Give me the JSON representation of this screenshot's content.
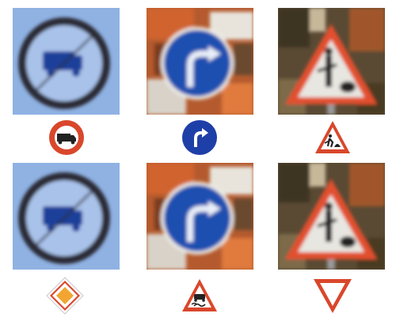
{
  "grid": {
    "rows": 2,
    "columns": 3,
    "photos": [
      {
        "row": 1,
        "col": 1,
        "subject": "no-trucks-sign",
        "background": "light-blue",
        "sign_color": "#1a3a8c"
      },
      {
        "row": 1,
        "col": 2,
        "subject": "turn-right-ahead-sign",
        "background": "blurred-orange-foliage",
        "sign_color": "#1f52b8"
      },
      {
        "row": 1,
        "col": 3,
        "subject": "road-works-sign",
        "background": "blurred-dark-foliage",
        "sign_color": "#e0553a"
      },
      {
        "row": 2,
        "col": 1,
        "subject": "no-trucks-sign",
        "background": "light-blue",
        "sign_color": "#1a3a8c"
      },
      {
        "row": 2,
        "col": 2,
        "subject": "turn-right-ahead-sign",
        "background": "blurred-orange-foliage",
        "sign_color": "#1f52b8"
      },
      {
        "row": 2,
        "col": 3,
        "subject": "road-works-sign",
        "background": "blurred-dark-foliage",
        "sign_color": "#e0553a"
      }
    ],
    "icons": [
      {
        "row": 1,
        "col": 1,
        "icon": "no-trucks-icon"
      },
      {
        "row": 1,
        "col": 2,
        "icon": "turn-right-icon"
      },
      {
        "row": 1,
        "col": 3,
        "icon": "road-works-icon"
      },
      {
        "row": 2,
        "col": 1,
        "icon": "priority-road-icon"
      },
      {
        "row": 2,
        "col": 2,
        "icon": "slippery-road-icon"
      },
      {
        "row": 2,
        "col": 3,
        "icon": "yield-icon"
      }
    ]
  },
  "colors": {
    "sign_red": "#d9472b",
    "sign_blue": "#1f4fb0",
    "priority_yellow": "#f2a531"
  }
}
